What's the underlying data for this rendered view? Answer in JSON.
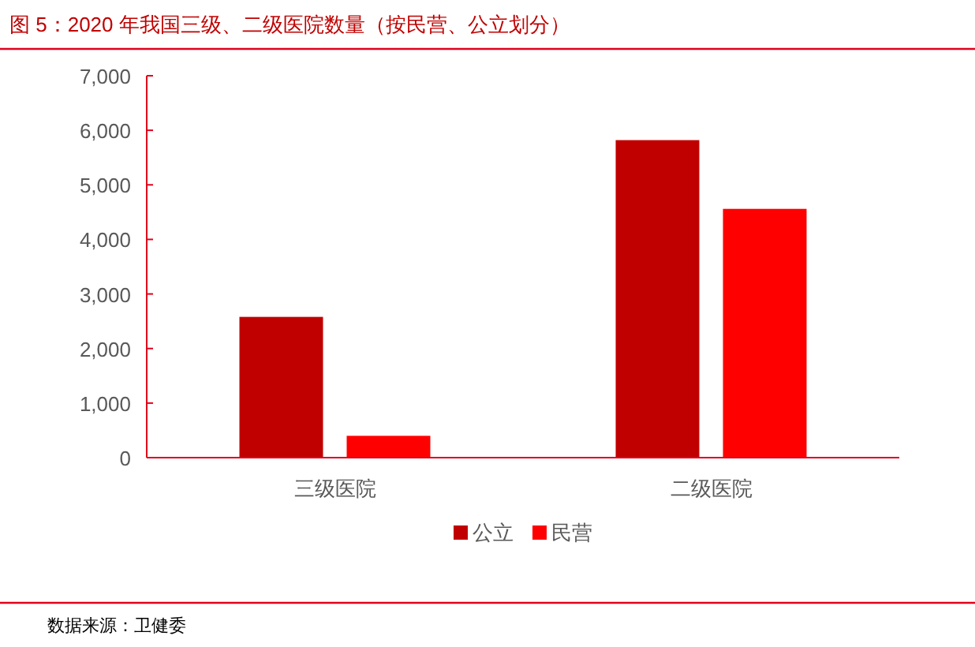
{
  "chart_data": {
    "type": "bar",
    "title": "图 5：2020 年我国三级、二级医院数量（按民营、公立划分）",
    "categories": [
      "三级医院",
      "二级医院"
    ],
    "series": [
      {
        "name": "公立",
        "color": "#c00000",
        "values": [
          2580,
          5820
        ]
      },
      {
        "name": "民营",
        "color": "#ff0000",
        "values": [
          400,
          4560
        ]
      }
    ],
    "ylim": [
      0,
      7000
    ],
    "yticks": [
      0,
      {
        "value": 1000,
        "label": "1,000"
      },
      {
        "value": 2000,
        "label": "2,000"
      },
      {
        "value": 3000,
        "label": "3,000"
      },
      {
        "value": 4000,
        "label": "4,000"
      },
      {
        "value": 5000,
        "label": "5,000"
      },
      {
        "value": 6000,
        "label": "6,000"
      },
      {
        "value": 7000,
        "label": "7,000"
      }
    ],
    "grid": false,
    "legend": "bottom",
    "annotations": [
      "数据来源：卫健委"
    ]
  }
}
